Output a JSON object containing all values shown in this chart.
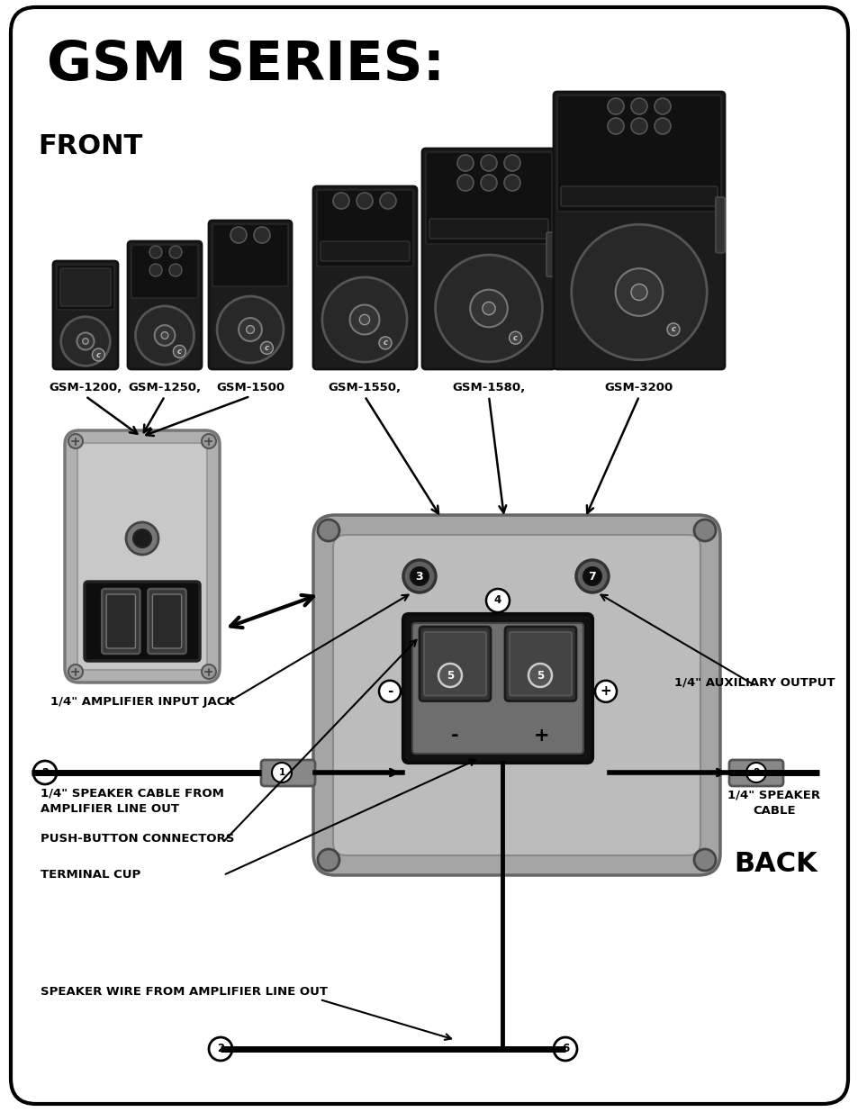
{
  "title": "GSM SERIES:",
  "front_label": "FRONT",
  "back_label": "BACK",
  "speaker_models": [
    "GSM-1200,",
    "GSM-1250,",
    "GSM-1500",
    "GSM-1550,",
    "GSM-1580,",
    "GSM-3200"
  ],
  "labels": {
    "amp_input": "1/4\" AMPLIFIER INPUT JACK",
    "aux_output": "1/4\" AUXILIARY OUTPUT",
    "speaker_cable_from_1": "1/4\" SPEAKER CABLE FROM",
    "speaker_cable_from_2": "AMPLIFIER LINE OUT",
    "push_button": "PUSH-BUTTON CONNECTORS",
    "terminal_cup": "TERMINAL CUP",
    "speaker_wire": "SPEAKER WIRE FROM AMPLIFIER LINE OUT",
    "speaker_cable_1": "1/4\" SPEAKER",
    "speaker_cable_2": "CABLE"
  }
}
